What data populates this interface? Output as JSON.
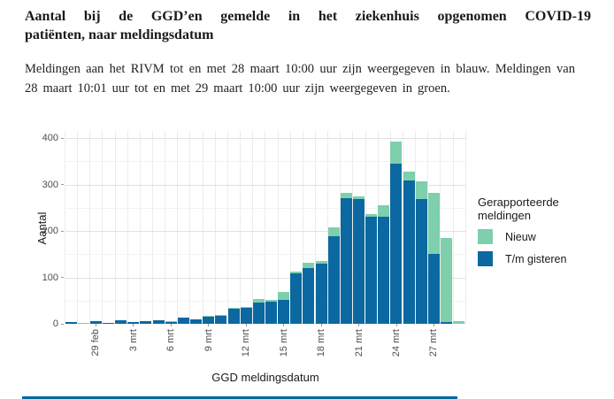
{
  "page": {
    "title": "Aantal bij de GGD’en gemelde in het ziekenhuis opgenomen COVID-19 patiënten, naar meldingsdatum",
    "intro": "Meldingen aan het RIVM tot en met 28 maart 10:00 uur zijn weergegeven in blauw. Meldingen van 28 maart 10:01 uur tot en met 29 maart 10:00 uur zijn weergegeven in groen."
  },
  "chart_data": {
    "type": "bar",
    "stacked": true,
    "xlabel": "GGD meldingsdatum",
    "ylabel": "Aantal",
    "ylim": [
      0,
      400
    ],
    "yticks": [
      0,
      100,
      200,
      300,
      400
    ],
    "yticks_minor": [
      50,
      150,
      250,
      350
    ],
    "grid": true,
    "legend_position": "right",
    "categories": [
      "27 feb",
      "28 feb",
      "29 feb",
      "1 mrt",
      "2 mrt",
      "3 mrt",
      "4 mrt",
      "5 mrt",
      "6 mrt",
      "7 mrt",
      "8 mrt",
      "9 mrt",
      "10 mrt",
      "11 mrt",
      "12 mrt",
      "13 mrt",
      "14 mrt",
      "15 mrt",
      "16 mrt",
      "17 mrt",
      "18 mrt",
      "19 mrt",
      "20 mrt",
      "21 mrt",
      "22 mrt",
      "23 mrt",
      "24 mrt",
      "25 mrt",
      "26 mrt",
      "27 mrt",
      "28 mrt",
      "29 mrt"
    ],
    "x_tick_labels": [
      "29 feb",
      "3 mrt",
      "6 mrt",
      "9 mrt",
      "12 mrt",
      "15 mrt",
      "18 mrt",
      "21 mrt",
      "24 mrt",
      "27 mrt"
    ],
    "series": [
      {
        "name": "T/m gisteren",
        "color": "#0c68a0",
        "values": [
          3,
          1,
          5,
          2,
          7,
          4,
          5,
          7,
          5,
          13,
          10,
          17,
          19,
          33,
          35,
          46,
          47,
          51,
          108,
          120,
          129,
          189,
          270,
          268,
          230,
          230,
          345,
          309,
          268,
          150,
          3,
          0
        ]
      },
      {
        "name": "Nieuw",
        "color": "#7ecfac",
        "values": [
          0,
          1,
          0,
          0,
          0,
          0,
          0,
          0,
          1,
          0,
          0,
          1,
          1,
          2,
          1,
          8,
          5,
          17,
          5,
          11,
          6,
          18,
          12,
          6,
          6,
          25,
          48,
          19,
          38,
          132,
          182,
          5
        ]
      }
    ],
    "legend": {
      "title": "Gerapporteerde meldingen",
      "items": [
        "Nieuw",
        "T/m gisteren"
      ]
    }
  },
  "footer": {
    "bar_color": "#01689b"
  }
}
